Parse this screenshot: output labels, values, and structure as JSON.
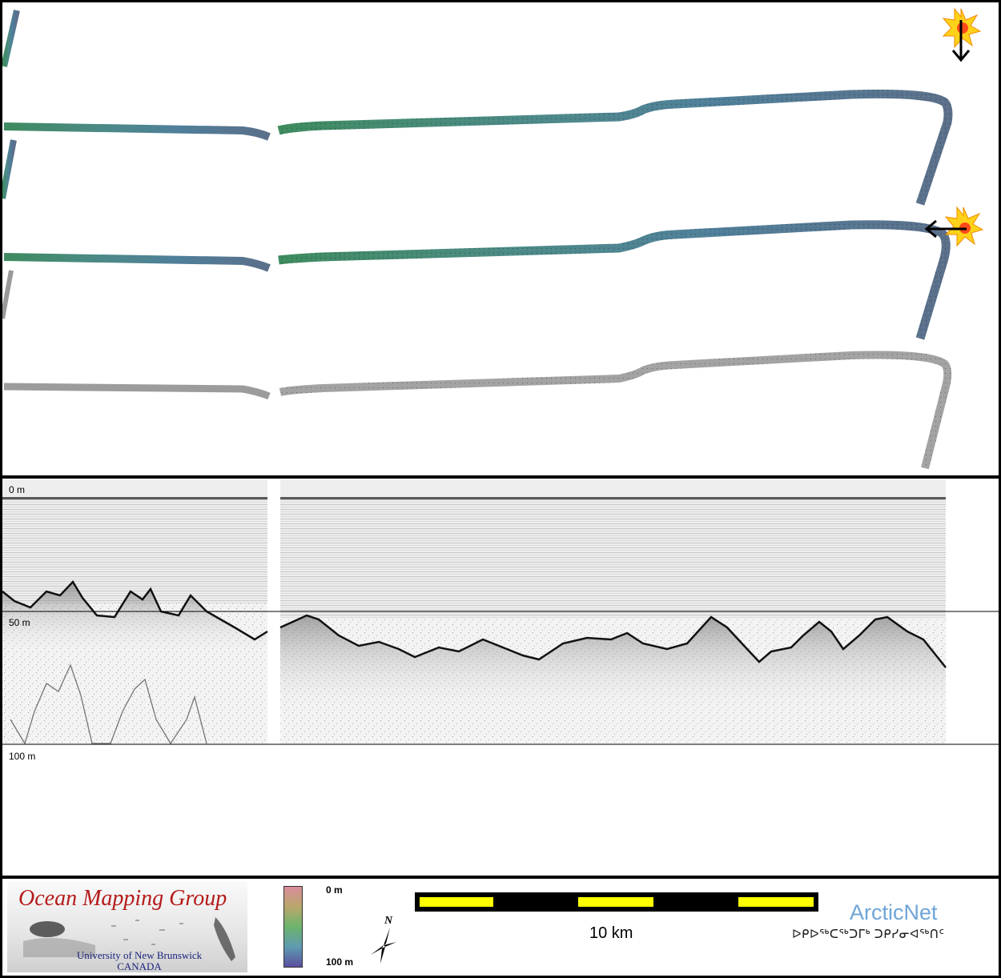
{
  "map": {
    "tracks": [
      {
        "name": "backscatter-track-upper",
        "style": "colored"
      },
      {
        "name": "backscatter-track-middle",
        "style": "colored"
      },
      {
        "name": "backscatter-track-lower",
        "style": "grayscale"
      }
    ],
    "markers": [
      {
        "name": "sun-marker-top-right",
        "arrow": "down"
      },
      {
        "name": "sun-marker-middle-right",
        "arrow": "left"
      }
    ]
  },
  "profile": {
    "depth_labels": [
      "0 m",
      "50 m",
      "100 m"
    ],
    "colors": {
      "background": "#f4f4f4",
      "seabed_line": "#111111"
    }
  },
  "footer": {
    "omg_logo": {
      "title": "Ocean Mapping Group",
      "university": "University of New Brunswick",
      "country": "CANADA"
    },
    "colorbar": {
      "top_label": "0 m",
      "bottom_label": "100 m"
    },
    "north_arrow": {
      "label": "N"
    },
    "scale_bar": {
      "label": "10 km",
      "colors": [
        "#000000",
        "#ffff00"
      ]
    },
    "arcticnet": {
      "title": "ArcticNet",
      "syllabics": "ᐅᑭᐅᖅᑕᖅᑐᒥᒃ ᑐᑭᓯᓂᐊᖅᑎᑦ"
    }
  }
}
